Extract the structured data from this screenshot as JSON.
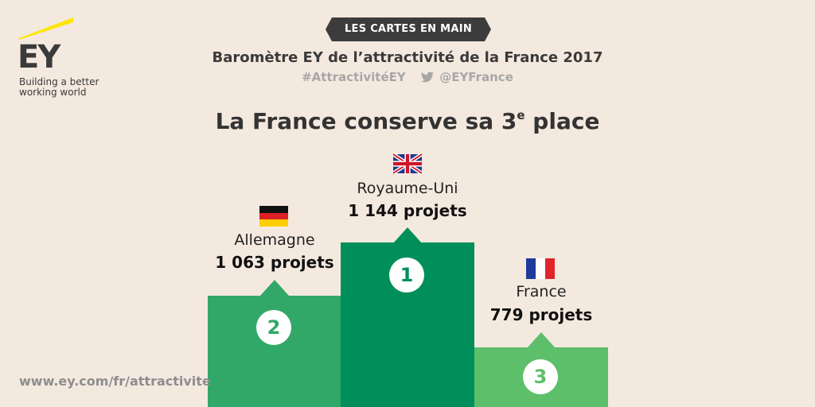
{
  "logo": {
    "name": "EY",
    "tagline": "Building a better working world",
    "accent_color": "#ffe600"
  },
  "header": {
    "banner": "LES CARTES EN MAIN",
    "subtitle": "Baromètre EY de l’attractivité de la France 2017",
    "hashtag": "#AttractivitéEY",
    "twitter_handle": "@EYFrance"
  },
  "title": {
    "text": "La France conserve sa 3",
    "superscript": "e",
    "suffix": " place"
  },
  "podium": [
    {
      "rank": "1",
      "country": "Royaume-Uni",
      "projects": "1 144 projets",
      "color": "#008f5a",
      "flag": "uk-flag-icon"
    },
    {
      "rank": "2",
      "country": "Allemagne",
      "projects": "1 063 projets",
      "color": "#31a868",
      "flag": "germany-flag-icon"
    },
    {
      "rank": "3",
      "country": "France",
      "projects": "779 projets",
      "color": "#5dbf6a",
      "flag": "france-flag-icon"
    }
  ],
  "footer": {
    "url": "www.ey.com/fr/attractivite"
  }
}
